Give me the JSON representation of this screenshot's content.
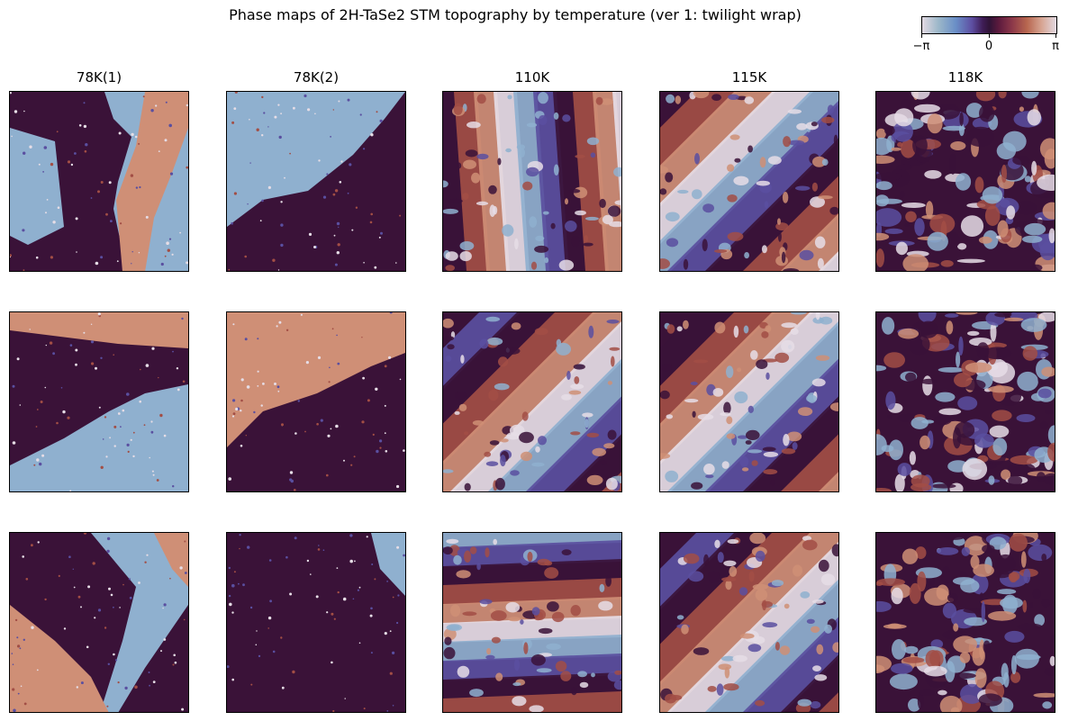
{
  "chart_data": {
    "type": "heatmap",
    "title": "Phase maps of 2H-TaSe2 STM topography by temperature (ver 1: twilight wrap)",
    "colormap": "twilight",
    "colorbar": {
      "ticks": [
        "−π",
        "0",
        "π"
      ],
      "range": [
        -3.14159,
        3.14159
      ],
      "placement": "top-right"
    },
    "columns": [
      "78K(1)",
      "78K(2)",
      "110K",
      "115K",
      "118K"
    ],
    "rows": 3,
    "panels": [
      {
        "row": 0,
        "col": 0,
        "pattern": "domains"
      },
      {
        "row": 0,
        "col": 1,
        "pattern": "domains"
      },
      {
        "row": 0,
        "col": 2,
        "pattern": "stripes-vertical"
      },
      {
        "row": 0,
        "col": 3,
        "pattern": "stripes-diagonal"
      },
      {
        "row": 0,
        "col": 4,
        "pattern": "mottled"
      },
      {
        "row": 1,
        "col": 0,
        "pattern": "domains"
      },
      {
        "row": 1,
        "col": 1,
        "pattern": "domains"
      },
      {
        "row": 1,
        "col": 2,
        "pattern": "stripes-diagonal"
      },
      {
        "row": 1,
        "col": 3,
        "pattern": "stripes-diagonal"
      },
      {
        "row": 1,
        "col": 4,
        "pattern": "mottled"
      },
      {
        "row": 2,
        "col": 0,
        "pattern": "domains"
      },
      {
        "row": 2,
        "col": 1,
        "pattern": "domains"
      },
      {
        "row": 2,
        "col": 2,
        "pattern": "stripes-horizontal"
      },
      {
        "row": 2,
        "col": 3,
        "pattern": "stripes-diagonal"
      },
      {
        "row": 2,
        "col": 4,
        "pattern": "mottled"
      }
    ],
    "grid": false
  },
  "colors": {
    "dark": "#3a1238",
    "blue": "#8fb0cf",
    "salmon": "#cf8f76",
    "violet": "#5a4fa0",
    "rust": "#a24e45",
    "light": "#e6dde6"
  }
}
